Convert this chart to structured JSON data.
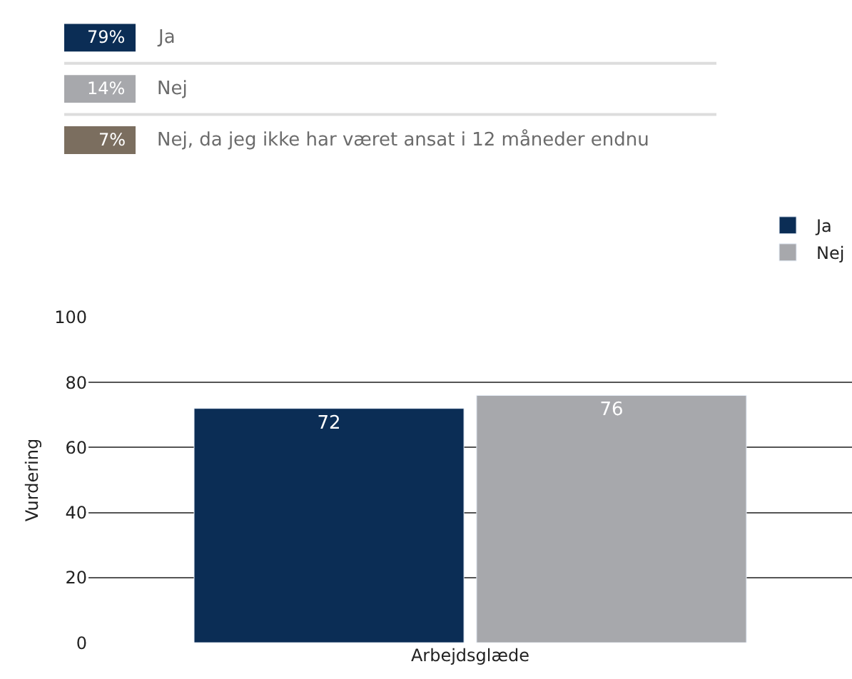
{
  "chart_data": [
    {
      "type": "other",
      "categories": [
        "Ja",
        "Nej",
        "Nej, da jeg ikke har været ansat i 12 måneder endnu"
      ],
      "values": [
        79,
        14,
        7
      ],
      "value_labels": [
        "79%",
        "14%",
        "7%"
      ],
      "colors": [
        "#0b2d55",
        "#a7a8ac",
        "#7b6e5f"
      ]
    },
    {
      "type": "bar",
      "categories": [
        "Arbejdsglæde"
      ],
      "ylabel": "Vurdering",
      "ylim": [
        0,
        100
      ],
      "yticks": [
        0,
        20,
        40,
        60,
        80,
        100
      ],
      "grid": "y",
      "legend": "top right",
      "data_labels": true,
      "series": [
        {
          "name": "Ja",
          "color": "#0b2d55",
          "values": [
            72
          ]
        },
        {
          "name": "Nej",
          "color": "#a7a8ac",
          "values": [
            76
          ]
        }
      ]
    }
  ]
}
